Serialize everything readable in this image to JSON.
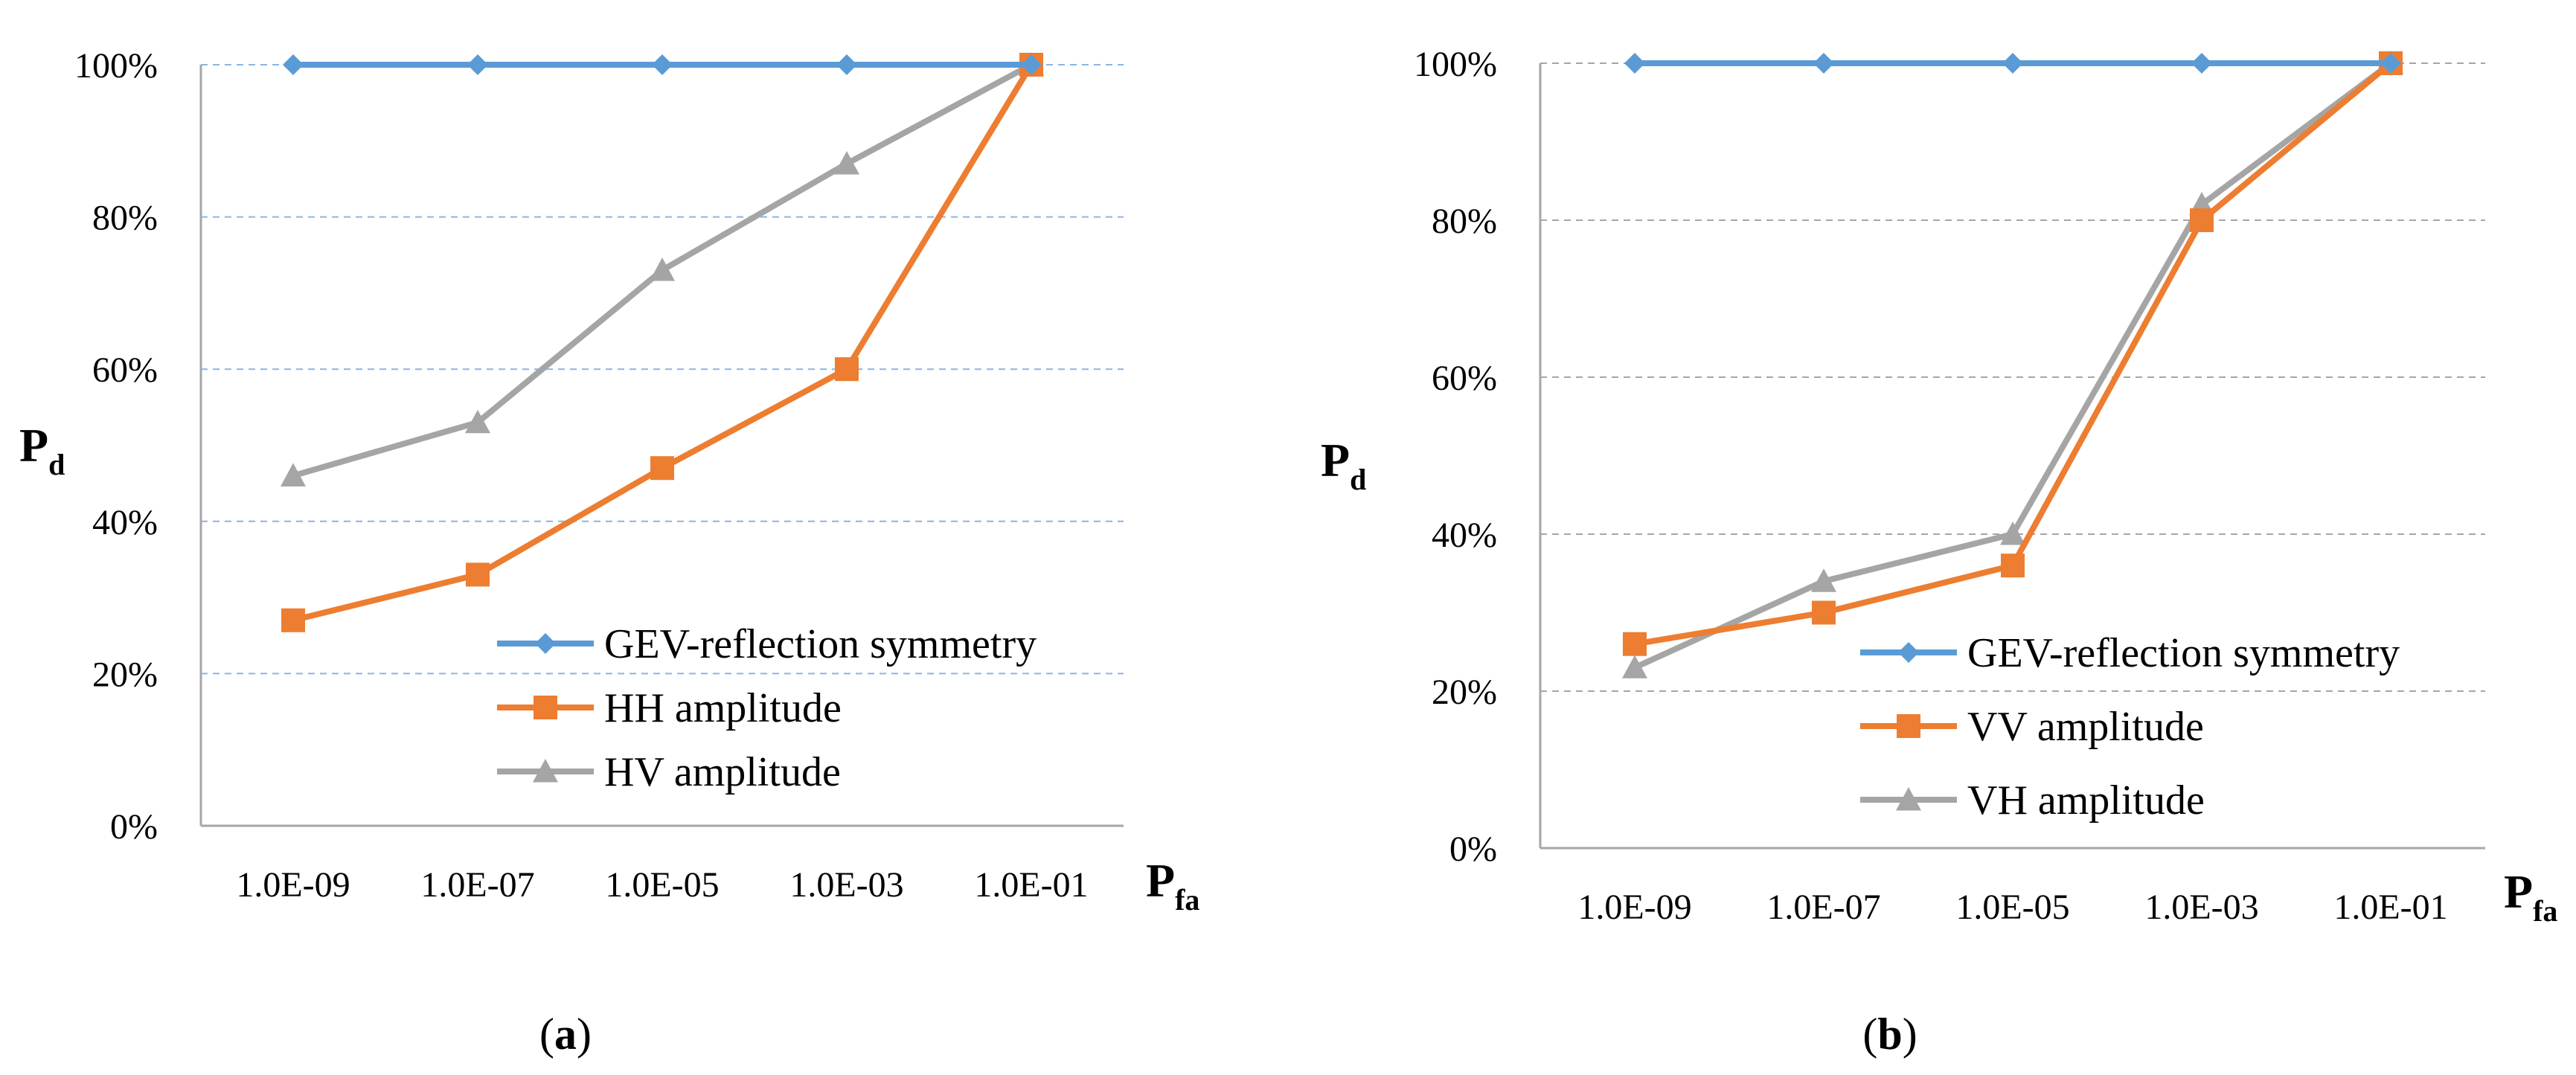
{
  "chart_data": [
    {
      "type": "line",
      "panel_label": "a",
      "categories": [
        "1.0E-09",
        "1.0E-07",
        "1.0E-05",
        "1.0E-03",
        "1.0E-01"
      ],
      "ylim": [
        0,
        100
      ],
      "yticks": [
        "0%",
        "20%",
        "40%",
        "60%",
        "80%",
        "100%"
      ],
      "ylabel": {
        "main": "P",
        "sub": "d"
      },
      "xlabel": {
        "main": "P",
        "sub": "fa"
      },
      "grid": "horizontal-dashed",
      "legend_position": "bottom-right",
      "series": [
        {
          "name": "GEV-reflection symmetry",
          "color": "#5B9BD5",
          "marker": "diamond",
          "values": [
            100,
            100,
            100,
            100,
            100
          ]
        },
        {
          "name": "HH amplitude",
          "color": "#ED7D31",
          "marker": "square",
          "values": [
            27,
            33,
            47,
            60,
            100
          ]
        },
        {
          "name": "HV amplitude",
          "color": "#A5A5A5",
          "marker": "triangle",
          "values": [
            46,
            53,
            73,
            87,
            100
          ]
        }
      ]
    },
    {
      "type": "line",
      "panel_label": "b",
      "categories": [
        "1.0E-09",
        "1.0E-07",
        "1.0E-05",
        "1.0E-03",
        "1.0E-01"
      ],
      "ylim": [
        0,
        100
      ],
      "yticks": [
        "0%",
        "20%",
        "40%",
        "60%",
        "80%",
        "100%"
      ],
      "ylabel": {
        "main": "P",
        "sub": "d"
      },
      "xlabel": {
        "main": "P",
        "sub": "fa"
      },
      "grid": "horizontal-dashed",
      "legend_position": "bottom-right",
      "series": [
        {
          "name": "GEV-reflection symmetry",
          "color": "#5B9BD5",
          "marker": "diamond",
          "values": [
            100,
            100,
            100,
            100,
            100
          ]
        },
        {
          "name": "VV amplitude",
          "color": "#ED7D31",
          "marker": "square",
          "values": [
            26,
            30,
            36,
            80,
            100
          ]
        },
        {
          "name": "VH amplitude",
          "color": "#A5A5A5",
          "marker": "triangle",
          "values": [
            23,
            34,
            40,
            82,
            100
          ]
        }
      ]
    }
  ]
}
